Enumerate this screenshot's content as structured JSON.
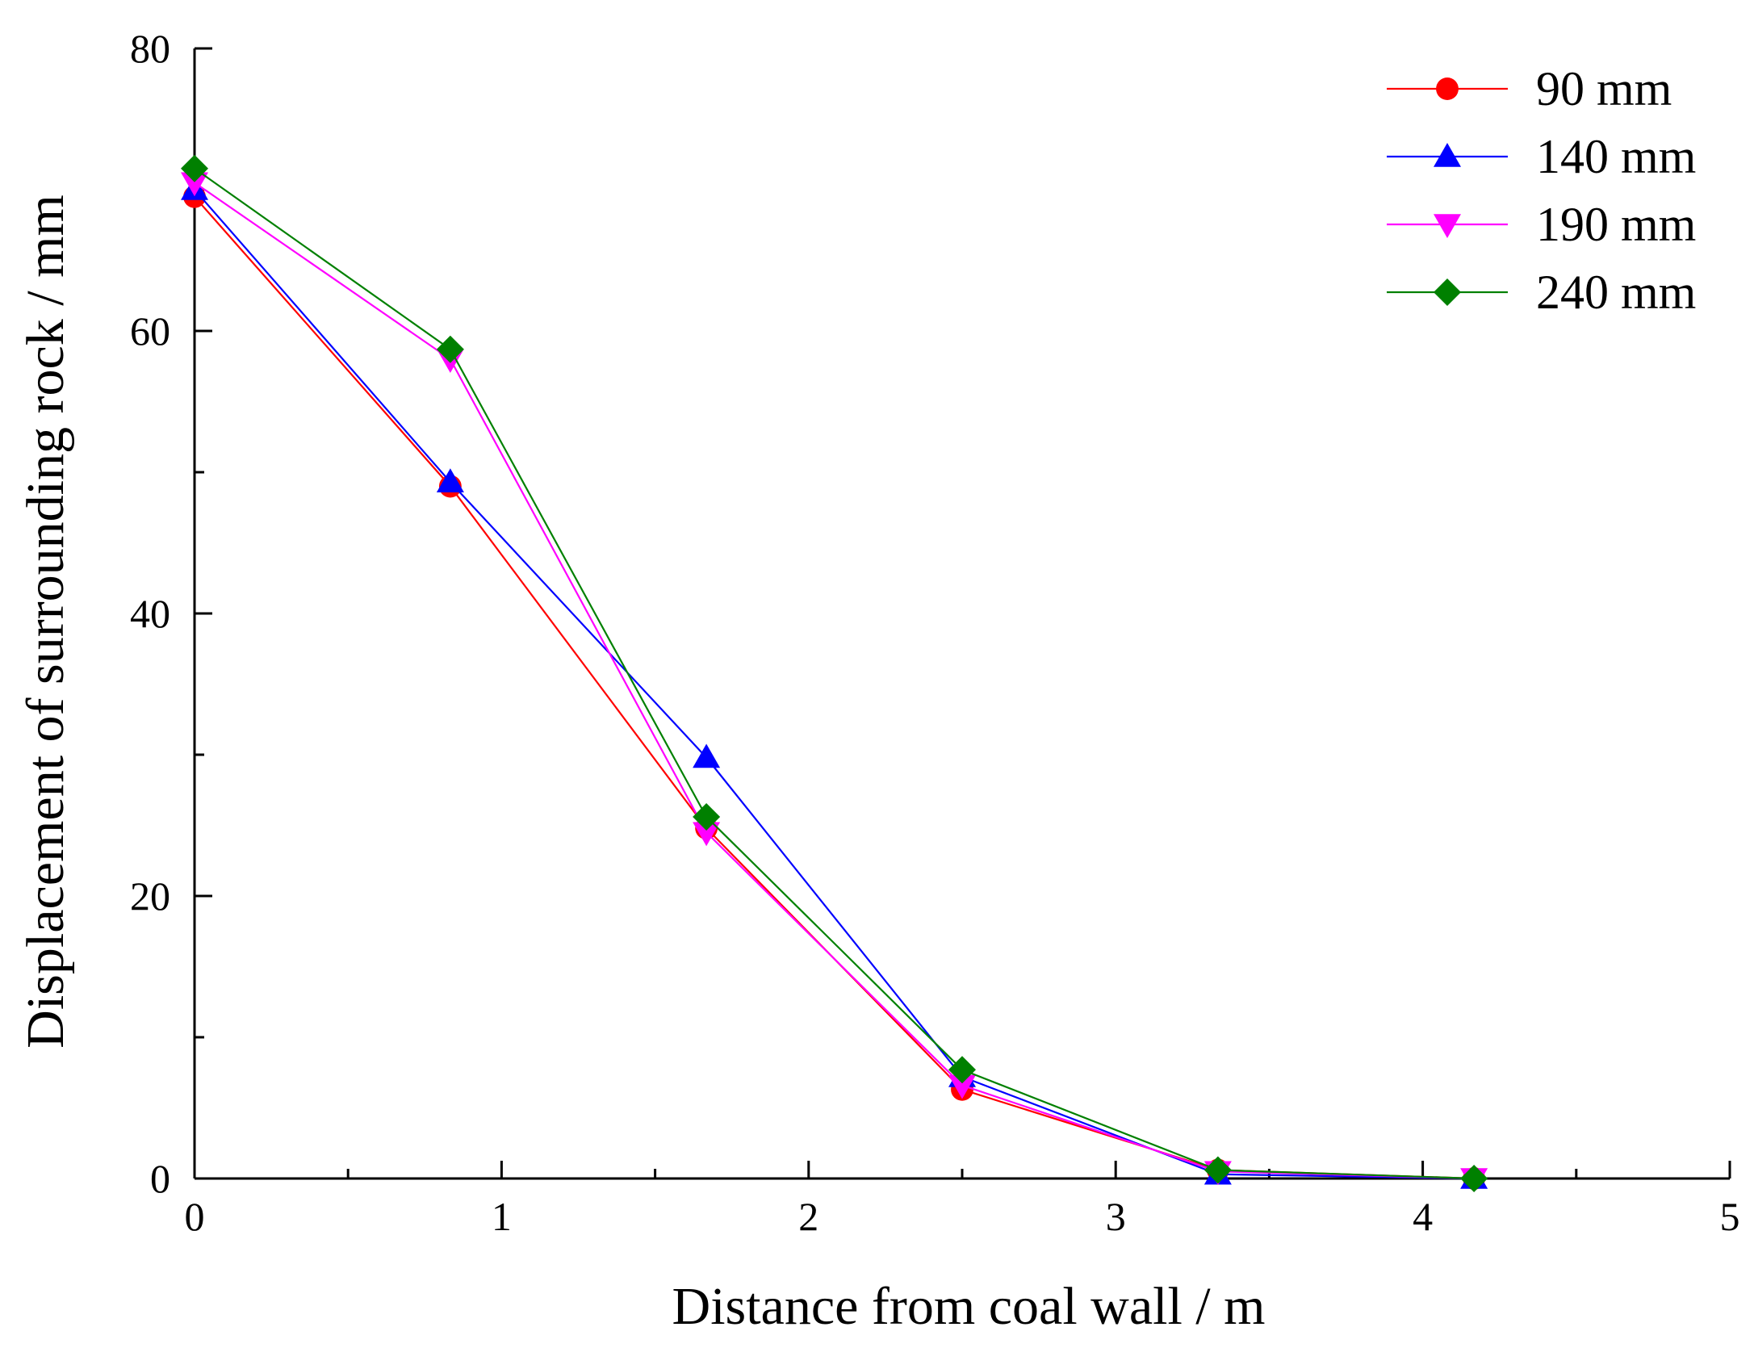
{
  "chart_data": {
    "type": "line",
    "title": "",
    "xlabel": "Distance from coal wall / m",
    "ylabel": "Displacement of surrounding rock / mm",
    "xlim": [
      0,
      5
    ],
    "ylim": [
      0,
      80
    ],
    "xticks": [
      0,
      1,
      2,
      3,
      4,
      5
    ],
    "yticks": [
      0,
      20,
      40,
      60,
      80
    ],
    "xtick_labels": [
      "0",
      "1",
      "2",
      "3",
      "4",
      "5"
    ],
    "ytick_labels": [
      "0",
      "20",
      "40",
      "60",
      "80"
    ],
    "grid": false,
    "legend_position": "top-right",
    "x": [
      0,
      0.833,
      1.667,
      2.5,
      3.333,
      4.167
    ],
    "series": [
      {
        "name": "90 mm",
        "color": "#ff0000",
        "marker": "circle",
        "values": [
          69.5,
          49.0,
          24.8,
          6.3,
          0.6,
          0.0
        ]
      },
      {
        "name": "140 mm",
        "color": "#0000ff",
        "marker": "triangle-up",
        "values": [
          70.0,
          49.3,
          29.8,
          7.2,
          0.3,
          0.0
        ]
      },
      {
        "name": "190 mm",
        "color": "#ff00ff",
        "marker": "triangle-down",
        "values": [
          70.5,
          58.0,
          24.5,
          6.6,
          0.5,
          0.0
        ]
      },
      {
        "name": "240 mm",
        "color": "#008000",
        "marker": "diamond",
        "values": [
          71.5,
          58.7,
          25.6,
          7.7,
          0.6,
          0.0
        ]
      }
    ]
  }
}
